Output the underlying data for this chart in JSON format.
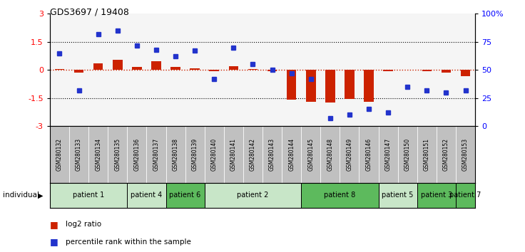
{
  "title": "GDS3697 / 19408",
  "samples": [
    "GSM280132",
    "GSM280133",
    "GSM280134",
    "GSM280135",
    "GSM280136",
    "GSM280137",
    "GSM280138",
    "GSM280139",
    "GSM280140",
    "GSM280141",
    "GSM280142",
    "GSM280143",
    "GSM280144",
    "GSM280145",
    "GSM280148",
    "GSM280149",
    "GSM280146",
    "GSM280147",
    "GSM280150",
    "GSM280151",
    "GSM280152",
    "GSM280153"
  ],
  "log2_ratio": [
    0.05,
    -0.15,
    0.35,
    0.55,
    0.15,
    0.45,
    0.15,
    0.1,
    -0.05,
    0.2,
    0.05,
    -0.05,
    -1.6,
    -1.7,
    -1.75,
    -1.55,
    -1.7,
    -0.05,
    0.0,
    -0.05,
    -0.15,
    -0.35
  ],
  "percentile_pct": [
    65,
    32,
    82,
    85,
    72,
    68,
    62,
    67,
    42,
    70,
    55,
    50,
    47,
    42,
    7,
    10,
    15,
    12,
    35,
    32,
    30,
    32
  ],
  "patient_groups": [
    {
      "label": "patient 1",
      "start": 0,
      "end": 4,
      "color": "#c8e6c8"
    },
    {
      "label": "patient 4",
      "start": 4,
      "end": 6,
      "color": "#c8e6c8"
    },
    {
      "label": "patient 6",
      "start": 6,
      "end": 8,
      "color": "#5dba5d"
    },
    {
      "label": "patient 2",
      "start": 8,
      "end": 13,
      "color": "#c8e6c8"
    },
    {
      "label": "patient 8",
      "start": 13,
      "end": 17,
      "color": "#5dba5d"
    },
    {
      "label": "patient 5",
      "start": 17,
      "end": 19,
      "color": "#c8e6c8"
    },
    {
      "label": "patient 3",
      "start": 19,
      "end": 21,
      "color": "#5dba5d"
    },
    {
      "label": "patient 7",
      "start": 21,
      "end": 22,
      "color": "#5dba5d"
    }
  ],
  "ylim": [
    -3,
    3
  ],
  "y2lim": [
    0,
    100
  ],
  "yticks_left": [
    -3,
    -1.5,
    0,
    1.5,
    3
  ],
  "yticks_right": [
    0,
    25,
    50,
    75,
    100
  ],
  "bar_color": "#cc2200",
  "dot_color": "#2233cc",
  "bg_color": "#ffffff"
}
